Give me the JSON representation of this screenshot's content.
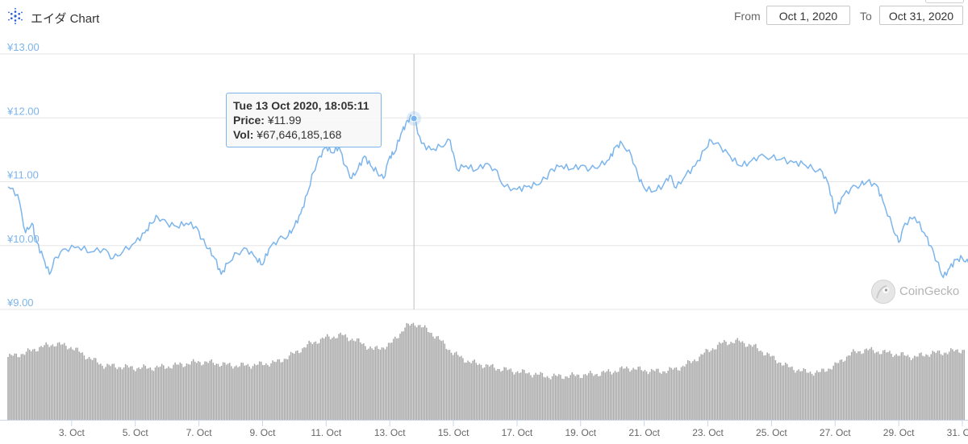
{
  "header": {
    "title": "エイダ Chart",
    "from_label": "From",
    "from_value": "Oct 1, 2020",
    "to_label": "To",
    "to_value": "Oct 31, 2020"
  },
  "tooltip": {
    "date": "Tue 13 Oct 2020, 18:05:11",
    "price_label": "Price:",
    "price_value": "¥11.99",
    "vol_label": "Vol:",
    "vol_value": "¥67,646,185,168"
  },
  "watermark": "CoinGecko",
  "colors": {
    "price_line": "#7cb5ec",
    "volume_bars": "#a6a6a6",
    "grid": "#e6e6e6"
  },
  "chart_data": {
    "type": "line",
    "title": "",
    "xlabel": "",
    "ylabel": "",
    "ylim": [
      9,
      13
    ],
    "yticks": [
      {
        "value": 9,
        "label": "¥9.00"
      },
      {
        "value": 10,
        "label": "¥10.00"
      },
      {
        "value": 11,
        "label": "¥11.00"
      },
      {
        "value": 12,
        "label": "¥12.00"
      },
      {
        "value": 13,
        "label": "¥13.00"
      }
    ],
    "xlim": [
      1.0,
      31.0
    ],
    "xticks": [
      {
        "value": 3,
        "label": "3. Oct"
      },
      {
        "value": 5,
        "label": "5. Oct"
      },
      {
        "value": 7,
        "label": "7. Oct"
      },
      {
        "value": 9,
        "label": "9. Oct"
      },
      {
        "value": 11,
        "label": "11. Oct"
      },
      {
        "value": 13,
        "label": "13. Oct"
      },
      {
        "value": 15,
        "label": "15. Oct"
      },
      {
        "value": 17,
        "label": "17. Oct"
      },
      {
        "value": 19,
        "label": "19. Oct"
      },
      {
        "value": 21,
        "label": "21. Oct"
      },
      {
        "value": 23,
        "label": "23. Oct"
      },
      {
        "value": 25,
        "label": "25. Oct"
      },
      {
        "value": 27,
        "label": "27. Oct"
      },
      {
        "value": 29,
        "label": "29. Oct"
      },
      {
        "value": 31,
        "label": "31. Oct"
      }
    ],
    "grid": true,
    "series": [
      {
        "name": "Price",
        "points": [
          [
            1.0,
            10.92
          ],
          [
            1.3,
            10.8
          ],
          [
            1.55,
            10.2
          ],
          [
            1.75,
            10.35
          ],
          [
            1.9,
            10.05
          ],
          [
            2.1,
            9.82
          ],
          [
            2.3,
            9.55
          ],
          [
            2.5,
            9.82
          ],
          [
            2.8,
            9.95
          ],
          [
            3.2,
            9.98
          ],
          [
            3.6,
            9.9
          ],
          [
            4.0,
            9.95
          ],
          [
            4.3,
            9.8
          ],
          [
            4.6,
            9.9
          ],
          [
            5.0,
            10.05
          ],
          [
            5.3,
            10.2
          ],
          [
            5.5,
            10.35
          ],
          [
            5.7,
            10.45
          ],
          [
            6.0,
            10.35
          ],
          [
            6.3,
            10.3
          ],
          [
            6.6,
            10.35
          ],
          [
            6.9,
            10.3
          ],
          [
            7.1,
            10.1
          ],
          [
            7.3,
            9.95
          ],
          [
            7.5,
            9.8
          ],
          [
            7.7,
            9.55
          ],
          [
            7.9,
            9.72
          ],
          [
            8.2,
            9.88
          ],
          [
            8.5,
            9.95
          ],
          [
            8.8,
            9.8
          ],
          [
            9.0,
            9.7
          ],
          [
            9.2,
            9.95
          ],
          [
            9.5,
            10.1
          ],
          [
            9.8,
            10.15
          ],
          [
            10.0,
            10.3
          ],
          [
            10.2,
            10.5
          ],
          [
            10.4,
            10.8
          ],
          [
            10.6,
            11.15
          ],
          [
            10.8,
            11.4
          ],
          [
            11.0,
            11.55
          ],
          [
            11.2,
            11.45
          ],
          [
            11.4,
            11.55
          ],
          [
            11.6,
            11.25
          ],
          [
            11.8,
            11.05
          ],
          [
            12.0,
            11.2
          ],
          [
            12.2,
            11.4
          ],
          [
            12.4,
            11.25
          ],
          [
            12.6,
            11.15
          ],
          [
            12.8,
            11.05
          ],
          [
            13.0,
            11.4
          ],
          [
            13.15,
            11.45
          ],
          [
            13.35,
            11.75
          ],
          [
            13.5,
            11.9
          ],
          [
            13.63,
            12.0
          ],
          [
            13.76,
            11.99
          ],
          [
            14.0,
            11.6
          ],
          [
            14.3,
            11.5
          ],
          [
            14.6,
            11.55
          ],
          [
            14.9,
            11.65
          ],
          [
            15.1,
            11.2
          ],
          [
            15.4,
            11.25
          ],
          [
            15.7,
            11.18
          ],
          [
            16.0,
            11.28
          ],
          [
            16.3,
            11.2
          ],
          [
            16.6,
            10.92
          ],
          [
            17.0,
            10.88
          ],
          [
            17.3,
            10.92
          ],
          [
            17.6,
            10.95
          ],
          [
            17.9,
            11.05
          ],
          [
            18.1,
            11.2
          ],
          [
            18.4,
            11.25
          ],
          [
            18.7,
            11.2
          ],
          [
            19.0,
            11.25
          ],
          [
            19.3,
            11.2
          ],
          [
            19.6,
            11.25
          ],
          [
            19.9,
            11.35
          ],
          [
            20.1,
            11.55
          ],
          [
            20.3,
            11.6
          ],
          [
            20.6,
            11.4
          ],
          [
            20.8,
            11.1
          ],
          [
            21.0,
            10.9
          ],
          [
            21.3,
            10.85
          ],
          [
            21.6,
            10.95
          ],
          [
            21.8,
            11.1
          ],
          [
            22.0,
            10.9
          ],
          [
            22.3,
            11.1
          ],
          [
            22.6,
            11.25
          ],
          [
            22.9,
            11.5
          ],
          [
            23.1,
            11.65
          ],
          [
            23.4,
            11.55
          ],
          [
            23.7,
            11.4
          ],
          [
            24.0,
            11.25
          ],
          [
            24.3,
            11.3
          ],
          [
            24.6,
            11.4
          ],
          [
            25.0,
            11.38
          ],
          [
            25.3,
            11.35
          ],
          [
            25.7,
            11.3
          ],
          [
            26.0,
            11.28
          ],
          [
            26.3,
            11.2
          ],
          [
            26.6,
            11.15
          ],
          [
            26.8,
            10.95
          ],
          [
            27.0,
            10.5
          ],
          [
            27.2,
            10.75
          ],
          [
            27.5,
            10.9
          ],
          [
            27.8,
            10.95
          ],
          [
            28.0,
            11.0
          ],
          [
            28.3,
            10.95
          ],
          [
            28.5,
            10.7
          ],
          [
            28.8,
            10.3
          ],
          [
            29.0,
            10.05
          ],
          [
            29.2,
            10.35
          ],
          [
            29.5,
            10.45
          ],
          [
            29.8,
            10.2
          ],
          [
            30.0,
            10.0
          ],
          [
            30.2,
            9.75
          ],
          [
            30.4,
            9.5
          ],
          [
            30.6,
            9.65
          ],
          [
            30.8,
            9.78
          ],
          [
            31.0,
            9.8
          ],
          [
            31.2,
            9.72
          ]
        ]
      },
      {
        "name": "Volume",
        "points": [
          [
            1.0,
            0.52
          ],
          [
            1.5,
            0.55
          ],
          [
            2.0,
            0.6
          ],
          [
            2.5,
            0.63
          ],
          [
            3.0,
            0.6
          ],
          [
            3.5,
            0.52
          ],
          [
            4.0,
            0.45
          ],
          [
            4.5,
            0.44
          ],
          [
            5.0,
            0.43
          ],
          [
            5.5,
            0.43
          ],
          [
            6.0,
            0.44
          ],
          [
            6.5,
            0.46
          ],
          [
            7.0,
            0.48
          ],
          [
            7.5,
            0.47
          ],
          [
            8.0,
            0.45
          ],
          [
            8.5,
            0.45
          ],
          [
            9.0,
            0.46
          ],
          [
            9.5,
            0.48
          ],
          [
            10.0,
            0.55
          ],
          [
            10.5,
            0.63
          ],
          [
            11.0,
            0.68
          ],
          [
            11.5,
            0.7
          ],
          [
            12.0,
            0.65
          ],
          [
            12.5,
            0.58
          ],
          [
            13.0,
            0.62
          ],
          [
            13.5,
            0.77
          ],
          [
            13.8,
            0.8
          ],
          [
            14.2,
            0.74
          ],
          [
            14.5,
            0.68
          ],
          [
            15.0,
            0.55
          ],
          [
            15.5,
            0.48
          ],
          [
            16.0,
            0.45
          ],
          [
            16.5,
            0.42
          ],
          [
            17.0,
            0.4
          ],
          [
            17.5,
            0.38
          ],
          [
            18.0,
            0.36
          ],
          [
            18.5,
            0.36
          ],
          [
            19.0,
            0.37
          ],
          [
            19.5,
            0.38
          ],
          [
            20.0,
            0.4
          ],
          [
            20.5,
            0.43
          ],
          [
            21.0,
            0.41
          ],
          [
            21.5,
            0.4
          ],
          [
            22.0,
            0.42
          ],
          [
            22.5,
            0.48
          ],
          [
            23.0,
            0.57
          ],
          [
            23.5,
            0.64
          ],
          [
            24.0,
            0.65
          ],
          [
            24.5,
            0.6
          ],
          [
            25.0,
            0.52
          ],
          [
            25.5,
            0.44
          ],
          [
            26.0,
            0.4
          ],
          [
            26.5,
            0.39
          ],
          [
            27.0,
            0.45
          ],
          [
            27.5,
            0.55
          ],
          [
            28.0,
            0.58
          ],
          [
            28.5,
            0.56
          ],
          [
            29.0,
            0.54
          ],
          [
            29.5,
            0.52
          ],
          [
            30.0,
            0.55
          ],
          [
            30.5,
            0.56
          ],
          [
            31.0,
            0.58
          ],
          [
            31.2,
            0.56
          ]
        ]
      }
    ]
  }
}
